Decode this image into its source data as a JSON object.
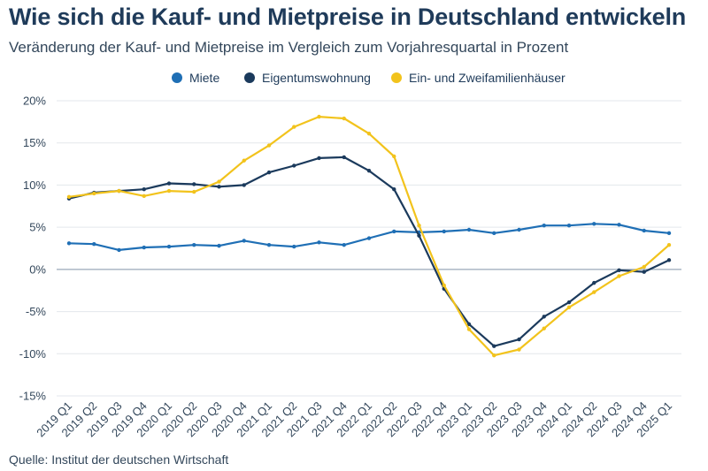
{
  "title": "Wie sich die Kauf- und Mietpreise in Deutschland entwickeln",
  "subtitle": "Veränderung der Kauf- und Mietpreise im Vergleich zum Vorjahresquartal in Prozent",
  "source": "Quelle: Institut der deutschen Wirtschaft",
  "chart_data": {
    "type": "line",
    "title": "Wie sich die Kauf- und Mietpreise in Deutschland entwickeln",
    "subtitle": "Veränderung der Kauf- und Mietpreise im Vergleich zum Vorjahresquartal in Prozent",
    "xlabel": "",
    "ylabel": "",
    "ylim": [
      -15,
      20
    ],
    "yticks": [
      20,
      15,
      10,
      5,
      0,
      -5,
      -10,
      -15
    ],
    "ytick_labels": [
      "20%",
      "15%",
      "10%",
      "5%",
      "0%",
      "-5%",
      "-10%",
      "-15%"
    ],
    "grid": true,
    "legend_position": "top-center",
    "x": [
      "2019 Q1",
      "2019 Q2",
      "2019 Q3",
      "2019 Q4",
      "2020 Q1",
      "2020 Q2",
      "2020 Q3",
      "2020 Q4",
      "2021 Q1",
      "2021 Q2",
      "2021 Q3",
      "2021 Q4",
      "2022 Q1",
      "2022 Q2",
      "2022 Q3",
      "2022 Q4",
      "2023 Q1",
      "2023 Q2",
      "2023 Q3",
      "2023 Q4",
      "2024 Q1",
      "2024 Q2",
      "2024 Q3",
      "2024 Q4",
      "2025 Q1"
    ],
    "series": [
      {
        "name": "Miete",
        "color": "#1f6fb5",
        "values": [
          3.1,
          3.0,
          2.3,
          2.6,
          2.7,
          2.9,
          2.8,
          3.4,
          2.9,
          2.7,
          3.2,
          2.9,
          3.7,
          4.5,
          4.4,
          4.5,
          4.7,
          4.3,
          4.7,
          5.2,
          5.2,
          5.4,
          5.3,
          4.6,
          4.3
        ]
      },
      {
        "name": "Eigentumswohnung",
        "color": "#1b3a5c",
        "values": [
          8.4,
          9.1,
          9.3,
          9.5,
          10.2,
          10.1,
          9.8,
          10.0,
          11.5,
          12.3,
          13.2,
          13.3,
          11.7,
          9.5,
          4.0,
          -2.3,
          -6.5,
          -9.1,
          -8.3,
          -5.6,
          -3.9,
          -1.6,
          -0.1,
          -0.3,
          1.1
        ]
      },
      {
        "name": "Ein- und Zweifamilienhäuser",
        "color": "#f2c31c",
        "values": [
          8.6,
          9.0,
          9.3,
          8.7,
          9.3,
          9.2,
          10.4,
          12.9,
          14.7,
          16.9,
          18.1,
          17.9,
          16.1,
          13.4,
          5.2,
          -1.9,
          -7.1,
          -10.2,
          -9.5,
          -7.0,
          -4.5,
          -2.7,
          -0.8,
          0.3,
          2.9
        ]
      }
    ]
  }
}
